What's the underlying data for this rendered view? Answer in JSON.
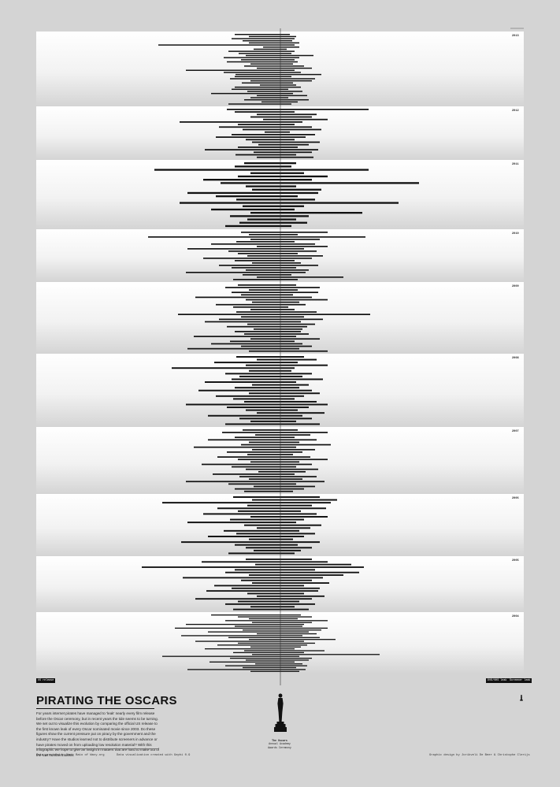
{
  "poster": {
    "title": "PIRATING THE OSCARS",
    "intro": "For years internet pirates have managed to 'leak' nearly every film release before the Oscar ceremony, but in recent years the tide seems to be turning. We set out to visualize this evolution by comparing the official US release to the first known leak of every Oscar nominated movie since 2003. Do these figures show the current pressure put on piracy by the government and the industry? Have the studios learned not to distribute screeners in advance or have pirates moved on from uploading low resolution material? With this infographic we hope to give an insight in matters that are hard to make out of the raw numbers alone.",
    "credit_left": "Data provided by Andy Baio of Waxy.org",
    "credit_mid": "Data visualization created with Gephi 0.9",
    "credit_right": "Graphic design by Jorikveli De Beer & Christophe Clerijs",
    "legend_left": "US release",
    "legend_right_1": "DVD/VHS leak",
    "legend_right_2": "Screener leak",
    "statue_caption_1": "The Oscars",
    "statue_caption_2": "Annual Academy Awards Ceremony",
    "colors": {
      "background": "#d4d4d4",
      "band": "#ffffff",
      "bar": "#111111",
      "axis": "#333333"
    }
  },
  "chart_data": {
    "type": "bar",
    "orientation": "horizontal-diverging",
    "description": "Each film: bar spans from its US release to its first known leak, centred on the Oscar ceremony date (vertical line).",
    "center_line": "Oscar ceremony",
    "years": [
      {
        "year": "2013",
        "bars": [
          [
            -58,
            12
          ],
          [
            -40,
            20
          ],
          [
            -62,
            18
          ],
          [
            -48,
            15
          ],
          [
            -40,
            24
          ],
          [
            -155,
            18
          ],
          [
            -22,
            24
          ],
          [
            -34,
            8
          ],
          [
            -66,
            18
          ],
          [
            -53,
            14
          ],
          [
            -44,
            42
          ],
          [
            -72,
            24
          ],
          [
            -50,
            18
          ],
          [
            -68,
            22
          ],
          [
            -38,
            16
          ],
          [
            -46,
            30
          ],
          [
            -30,
            40
          ],
          [
            -120,
            18
          ],
          [
            -72,
            26
          ],
          [
            -57,
            52
          ],
          [
            -58,
            14
          ],
          [
            -64,
            44
          ],
          [
            -38,
            40
          ],
          [
            -49,
            16
          ],
          [
            -26,
            20
          ],
          [
            -58,
            26
          ],
          [
            -62,
            10
          ],
          [
            -42,
            28
          ],
          [
            -88,
            16
          ],
          [
            -30,
            34
          ],
          [
            -38,
            10
          ],
          [
            -46,
            36
          ],
          [
            -24,
            22
          ],
          [
            -66,
            14
          ]
        ]
      },
      {
        "year": "2012",
        "bars": [
          [
            -68,
            112
          ],
          [
            -58,
            18
          ],
          [
            -30,
            46
          ],
          [
            -38,
            40
          ],
          [
            -22,
            60
          ],
          [
            -128,
            28
          ],
          [
            -54,
            18
          ],
          [
            -78,
            40
          ],
          [
            -48,
            52
          ],
          [
            -20,
            12
          ],
          [
            -62,
            44
          ],
          [
            -82,
            32
          ],
          [
            -44,
            18
          ],
          [
            -36,
            50
          ],
          [
            -28,
            36
          ],
          [
            -54,
            22
          ],
          [
            -96,
            48
          ],
          [
            -34,
            40
          ],
          [
            -57,
            20
          ],
          [
            -30,
            42
          ]
        ]
      },
      {
        "year": "2011",
        "bars": [
          [
            -46,
            20
          ],
          [
            -58,
            14
          ],
          [
            -160,
            112
          ],
          [
            -38,
            30
          ],
          [
            -54,
            60
          ],
          [
            -98,
            40
          ],
          [
            -76,
            176
          ],
          [
            -44,
            20
          ],
          [
            -36,
            52
          ],
          [
            -118,
            48
          ],
          [
            -82,
            22
          ],
          [
            -56,
            44
          ],
          [
            -128,
            150
          ],
          [
            -48,
            30
          ],
          [
            -88,
            18
          ],
          [
            -38,
            104
          ],
          [
            -64,
            36
          ],
          [
            -42,
            20
          ],
          [
            -52,
            34
          ],
          [
            -70,
            14
          ]
        ]
      },
      {
        "year": "2010",
        "bars": [
          [
            -50,
            60
          ],
          [
            -40,
            22
          ],
          [
            -168,
            108
          ],
          [
            -38,
            50
          ],
          [
            -56,
            18
          ],
          [
            -88,
            44
          ],
          [
            -30,
            60
          ],
          [
            -118,
            30
          ],
          [
            -66,
            46
          ],
          [
            -54,
            22
          ],
          [
            -42,
            54
          ],
          [
            -98,
            40
          ],
          [
            -58,
            18
          ],
          [
            -36,
            26
          ],
          [
            -78,
            48
          ],
          [
            -62,
            20
          ],
          [
            -44,
            36
          ],
          [
            -120,
            32
          ],
          [
            -48,
            14
          ],
          [
            -30,
            80
          ],
          [
            -60,
            22
          ]
        ]
      },
      {
        "year": "2009",
        "bars": [
          [
            -54,
            20
          ],
          [
            -70,
            50
          ],
          [
            -40,
            22
          ],
          [
            -62,
            48
          ],
          [
            -50,
            16
          ],
          [
            -108,
            40
          ],
          [
            -44,
            60
          ],
          [
            -36,
            24
          ],
          [
            -82,
            32
          ],
          [
            -60,
            10
          ],
          [
            -38,
            18
          ],
          [
            -56,
            46
          ],
          [
            -130,
            114
          ],
          [
            -50,
            30
          ],
          [
            -78,
            54
          ],
          [
            -96,
            26
          ],
          [
            -42,
            44
          ],
          [
            -68,
            34
          ],
          [
            -34,
            28
          ],
          [
            -58,
            26
          ],
          [
            -46,
            36
          ],
          [
            -110,
            20
          ],
          [
            -38,
            50
          ],
          [
            -64,
            18
          ],
          [
            -88,
            28
          ],
          [
            -50,
            40
          ],
          [
            -118,
            24
          ],
          [
            -40,
            60
          ]
        ]
      },
      {
        "year": "2008",
        "bars": [
          [
            -56,
            30
          ],
          [
            -30,
            46
          ],
          [
            -84,
            22
          ],
          [
            -44,
            60
          ],
          [
            -138,
            18
          ],
          [
            -40,
            14
          ],
          [
            -70,
            40
          ],
          [
            -52,
            28
          ],
          [
            -62,
            54
          ],
          [
            -96,
            20
          ],
          [
            -36,
            36
          ],
          [
            -58,
            24
          ],
          [
            -104,
            40
          ],
          [
            -40,
            50
          ],
          [
            -82,
            30
          ],
          [
            -60,
            18
          ],
          [
            -46,
            46
          ],
          [
            -120,
            60
          ],
          [
            -68,
            36
          ],
          [
            -44,
            22
          ],
          [
            -30,
            56
          ],
          [
            -92,
            28
          ],
          [
            -52,
            40
          ],
          [
            -38,
            20
          ],
          [
            -70,
            50
          ]
        ]
      },
      {
        "year": "2007",
        "bars": [
          [
            -48,
            22
          ],
          [
            -74,
            60
          ],
          [
            -32,
            38
          ],
          [
            -58,
            18
          ],
          [
            -92,
            46
          ],
          [
            -40,
            24
          ],
          [
            -50,
            64
          ],
          [
            -110,
            20
          ],
          [
            -36,
            44
          ],
          [
            -68,
            28
          ],
          [
            -42,
            16
          ],
          [
            -80,
            38
          ],
          [
            -54,
            60
          ],
          [
            -38,
            24
          ],
          [
            -100,
            40
          ],
          [
            -62,
            20
          ],
          [
            -44,
            48
          ],
          [
            -28,
            32
          ],
          [
            -86,
            18
          ],
          [
            -52,
            46
          ],
          [
            -40,
            28
          ],
          [
            -120,
            56
          ],
          [
            -66,
            20
          ],
          [
            -34,
            44
          ],
          [
            -58,
            30
          ],
          [
            -46,
            16
          ]
        ]
      },
      {
        "year": "2006",
        "bars": [
          [
            -60,
            50
          ],
          [
            -36,
            72
          ],
          [
            -150,
            64
          ],
          [
            -42,
            40
          ],
          [
            -80,
            58
          ],
          [
            -54,
            26
          ],
          [
            -98,
            46
          ],
          [
            -38,
            60
          ],
          [
            -64,
            30
          ],
          [
            -118,
            20
          ],
          [
            -46,
            52
          ],
          [
            -30,
            38
          ],
          [
            -72,
            24
          ],
          [
            -56,
            44
          ],
          [
            -92,
            30
          ],
          [
            -40,
            16
          ],
          [
            -126,
            50
          ],
          [
            -58,
            22
          ],
          [
            -44,
            40
          ],
          [
            -34,
            26
          ],
          [
            -66,
            18
          ]
        ]
      },
      {
        "year": "2005",
        "bars": [
          [
            -44,
            40
          ],
          [
            -100,
            60
          ],
          [
            -32,
            90
          ],
          [
            -176,
            106
          ],
          [
            -58,
            44
          ],
          [
            -70,
            100
          ],
          [
            -40,
            80
          ],
          [
            -124,
            54
          ],
          [
            -50,
            40
          ],
          [
            -36,
            62
          ],
          [
            -84,
            30
          ],
          [
            -62,
            50
          ],
          [
            -94,
            48
          ],
          [
            -42,
            30
          ],
          [
            -30,
            56
          ],
          [
            -108,
            40
          ],
          [
            -54,
            24
          ],
          [
            -70,
            44
          ],
          [
            -38,
            18
          ],
          [
            -60,
            36
          ]
        ]
      },
      {
        "year": "2004",
        "bars": [
          [
            -88,
            26
          ],
          [
            -54,
            40
          ],
          [
            -40,
            22
          ],
          [
            -70,
            60
          ],
          [
            -36,
            40
          ],
          [
            -120,
            30
          ],
          [
            -58,
            28
          ],
          [
            -134,
            60
          ],
          [
            -48,
            52
          ],
          [
            -92,
            36
          ],
          [
            -30,
            46
          ],
          [
            -126,
            28
          ],
          [
            -66,
            50
          ],
          [
            -40,
            70
          ],
          [
            -108,
            30
          ],
          [
            -54,
            44
          ],
          [
            -80,
            34
          ],
          [
            -38,
            26
          ],
          [
            -96,
            18
          ],
          [
            -46,
            56
          ],
          [
            -60,
            30
          ],
          [
            -36,
            126
          ],
          [
            -150,
            24
          ],
          [
            -64,
            40
          ],
          [
            -44,
            36
          ],
          [
            -90,
            18
          ],
          [
            -32,
            28
          ],
          [
            -70,
            34
          ],
          [
            -48,
            20
          ],
          [
            -118,
            32
          ],
          [
            -38,
            24
          ]
        ]
      }
    ]
  }
}
